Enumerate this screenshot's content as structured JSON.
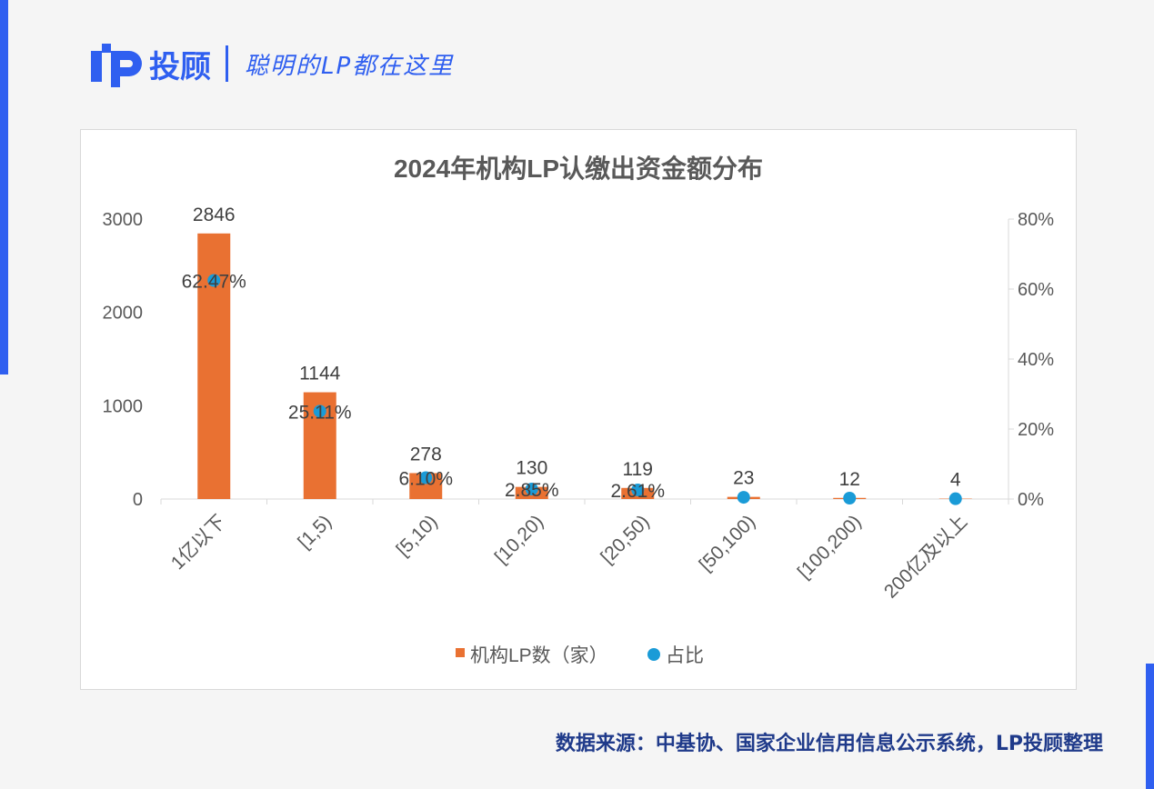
{
  "header": {
    "brand": "投顾",
    "slogan": "聪明的LP都在这里",
    "logo_text": "LP"
  },
  "source": "数据来源：中基协、国家企业信用信息公示系统，LP投顾整理",
  "chart_data": {
    "type": "bar+scatter",
    "title": "2024年机构LP认缴出资金额分布",
    "categories": [
      "1亿以下",
      "[1,5)",
      "[5,10)",
      "[10,20)",
      "[20,50)",
      "[50,100)",
      "[100,200)",
      "200亿及以上"
    ],
    "series": [
      {
        "name": "机构LP数（家）",
        "type": "bar",
        "color": "#e97132",
        "values": [
          2846,
          1144,
          278,
          130,
          119,
          23,
          12,
          4
        ]
      },
      {
        "name": "占比",
        "type": "scatter",
        "axis": "right",
        "color": "#1a9bd7",
        "values": [
          62.47,
          25.11,
          6.1,
          2.85,
          2.61,
          0.5,
          0.26,
          0.09
        ],
        "labels": [
          "62.47%",
          "25.11%",
          "6.10%",
          "2.85%",
          "2.61%",
          "",
          "",
          ""
        ]
      }
    ],
    "y_left": {
      "ylim": [
        0,
        3000
      ],
      "ticks": [
        "0",
        "1000",
        "2000",
        "3000"
      ]
    },
    "y_right": {
      "ylim": [
        0,
        80
      ],
      "ticks": [
        "0%",
        "20%",
        "40%",
        "60%",
        "80%"
      ]
    },
    "legend": "bottom",
    "grid": false
  }
}
